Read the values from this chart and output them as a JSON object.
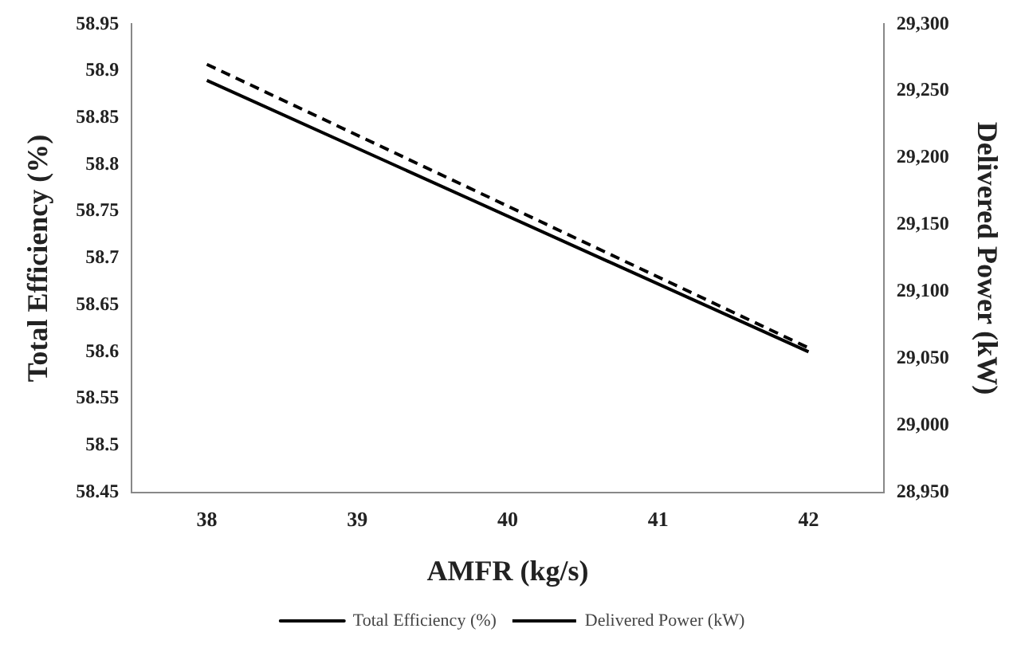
{
  "chart_data": {
    "type": "line",
    "xlabel": "AMFR (kg/s)",
    "ylabel": "Total Efficiency (%)",
    "y2label": "Delivered Power (kW)",
    "x": [
      38,
      42
    ],
    "xlim": [
      37.5,
      42.5
    ],
    "xticks": [
      38,
      39,
      40,
      41,
      42
    ],
    "ylim": [
      58.45,
      58.95
    ],
    "yticks": [
      58.45,
      58.5,
      58.55,
      58.6,
      58.65,
      58.7,
      58.75,
      58.8,
      58.85,
      58.9,
      58.95
    ],
    "y2lim": [
      28950,
      29300
    ],
    "y2ticks": [
      {
        "value": 28950,
        "label": "28,950"
      },
      {
        "value": 29000,
        "label": "29,000"
      },
      {
        "value": 29050,
        "label": "29,050"
      },
      {
        "value": 29100,
        "label": "29,100"
      },
      {
        "value": 29150,
        "label": "29,150"
      },
      {
        "value": 29200,
        "label": "29,200"
      },
      {
        "value": 29250,
        "label": "29,250"
      },
      {
        "value": 29300,
        "label": "29,300"
      }
    ],
    "series": [
      {
        "name": "Total Efficiency (%)",
        "color": "#000000",
        "values": [
          58.89,
          58.6
        ],
        "line_style": "solid"
      },
      {
        "name": "Delivered Power (kW)",
        "color": "#000000",
        "values": [
          29270,
          29058
        ],
        "axis": "y2",
        "line_style": "dashed"
      }
    ],
    "grid": false,
    "legend": "bottom"
  }
}
